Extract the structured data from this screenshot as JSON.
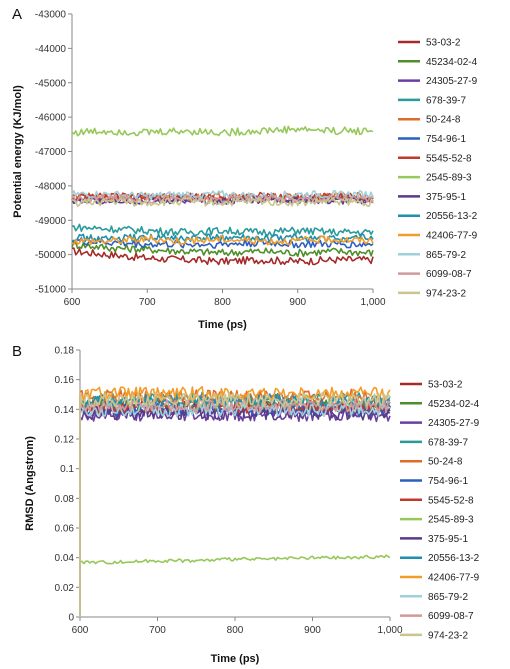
{
  "chart_data": [
    {
      "type": "line",
      "panel_label": "A",
      "xlabel": "Time (ps)",
      "ylabel": "Potential energy (KJ/mol)",
      "xlim": [
        600,
        1000
      ],
      "ylim": [
        -51000,
        -43000
      ],
      "x_ticks": [
        "600",
        "700",
        "800",
        "900",
        "1,000"
      ],
      "y_ticks": [
        "-43000",
        "-44000",
        "-45000",
        "-46000",
        "-47000",
        "-48000",
        "-49000",
        "-50000",
        "-51000"
      ],
      "grid": false,
      "legend_position": "right",
      "x": [
        600,
        650,
        700,
        750,
        800,
        850,
        900,
        950,
        1000
      ],
      "series": [
        {
          "name": "53-03-2",
          "color": "#a52a2a",
          "values": [
            -49900,
            -50000,
            -50100,
            -50150,
            -50200,
            -50150,
            -50200,
            -50150,
            -50150
          ]
        },
        {
          "name": "45234-02-4",
          "color": "#4e8f2a",
          "values": [
            -49700,
            -49800,
            -49850,
            -49900,
            -49950,
            -49900,
            -49950,
            -49900,
            -49950
          ]
        },
        {
          "name": "24305-27-9",
          "color": "#6a3fa0",
          "values": [
            -48400,
            -48400,
            -48350,
            -48400,
            -48400,
            -48350,
            -48400,
            -48350,
            -48400
          ]
        },
        {
          "name": "678-39-7",
          "color": "#2a9a9a",
          "values": [
            -49200,
            -49250,
            -49300,
            -49350,
            -49300,
            -49350,
            -49300,
            -49350,
            -49350
          ]
        },
        {
          "name": "50-24-8",
          "color": "#e06c2a",
          "values": [
            -48300,
            -48350,
            -48300,
            -48350,
            -48300,
            -48350,
            -48300,
            -48300,
            -48300
          ]
        },
        {
          "name": "754-96-1",
          "color": "#2c5fbf",
          "values": [
            -49600,
            -49650,
            -49700,
            -49700,
            -49700,
            -49650,
            -49700,
            -49700,
            -49700
          ]
        },
        {
          "name": "5545-52-8",
          "color": "#c0392b",
          "values": [
            -48350,
            -48300,
            -48350,
            -48300,
            -48350,
            -48300,
            -48350,
            -48300,
            -48350
          ]
        },
        {
          "name": "2545-89-3",
          "color": "#97c85a",
          "values": [
            -46450,
            -46400,
            -46450,
            -46400,
            -46450,
            -46400,
            -46350,
            -46400,
            -46400
          ]
        },
        {
          "name": "375-95-1",
          "color": "#5b3a8a",
          "values": [
            -48450,
            -48400,
            -48450,
            -48400,
            -48450,
            -48400,
            -48400,
            -48450,
            -48400
          ]
        },
        {
          "name": "20556-13-2",
          "color": "#1f8fb0",
          "values": [
            -49500,
            -49550,
            -49500,
            -49550,
            -49500,
            -49550,
            -49500,
            -49550,
            -49500
          ]
        },
        {
          "name": "42406-77-9",
          "color": "#f39c2a",
          "values": [
            -49600,
            -49600,
            -49550,
            -49600,
            -49550,
            -49600,
            -49600,
            -49550,
            -49600
          ]
        },
        {
          "name": "865-79-2",
          "color": "#9fd0dc",
          "values": [
            -48250,
            -48250,
            -48300,
            -48250,
            -48250,
            -48300,
            -48250,
            -48250,
            -48250
          ]
        },
        {
          "name": "6099-08-7",
          "color": "#d19a9a",
          "values": [
            -48400,
            -48350,
            -48400,
            -48350,
            -48400,
            -48350,
            -48400,
            -48350,
            -48400
          ]
        },
        {
          "name": "974-23-2",
          "color": "#c9c58e",
          "values": [
            -48500,
            -48450,
            -48500,
            -48450,
            -48500,
            -48450,
            -48500,
            -48450,
            -48500
          ]
        }
      ]
    },
    {
      "type": "line",
      "panel_label": "B",
      "xlabel": "Time (ps)",
      "ylabel": "RMSD (Angstrom)",
      "xlim": [
        600,
        1000
      ],
      "ylim": [
        0,
        0.18
      ],
      "x_ticks": [
        "600",
        "700",
        "800",
        "900",
        "1,000"
      ],
      "y_ticks": [
        "0.18",
        "0.16",
        "0.14",
        "0.12",
        "0.1",
        "0.08",
        "0.06",
        "0.04",
        "0.02",
        "0"
      ],
      "grid": false,
      "legend_position": "right",
      "x": [
        600,
        650,
        700,
        750,
        800,
        850,
        900,
        950,
        1000
      ],
      "series": [
        {
          "name": "53-03-2",
          "color": "#a52a2a",
          "values": [
            0.14,
            0.141,
            0.14,
            0.141,
            0.14,
            0.141,
            0.14,
            0.141,
            0.14
          ]
        },
        {
          "name": "45234-02-4",
          "color": "#4e8f2a",
          "values": [
            0.142,
            0.142,
            0.143,
            0.142,
            0.143,
            0.142,
            0.143,
            0.142,
            0.142
          ]
        },
        {
          "name": "24305-27-9",
          "color": "#6a3fa0",
          "values": [
            0.136,
            0.137,
            0.136,
            0.137,
            0.136,
            0.137,
            0.136,
            0.137,
            0.136
          ]
        },
        {
          "name": "678-39-7",
          "color": "#2a9a9a",
          "values": [
            0.146,
            0.147,
            0.146,
            0.147,
            0.146,
            0.147,
            0.146,
            0.147,
            0.146
          ]
        },
        {
          "name": "50-24-8",
          "color": "#e06c2a",
          "values": [
            0.148,
            0.149,
            0.148,
            0.149,
            0.148,
            0.149,
            0.148,
            0.149,
            0.148
          ]
        },
        {
          "name": "754-96-1",
          "color": "#2c5fbf",
          "values": [
            0.14,
            0.139,
            0.14,
            0.139,
            0.14,
            0.139,
            0.14,
            0.139,
            0.14
          ]
        },
        {
          "name": "5545-52-8",
          "color": "#c0392b",
          "values": [
            0.142,
            0.141,
            0.142,
            0.141,
            0.142,
            0.141,
            0.142,
            0.141,
            0.142
          ]
        },
        {
          "name": "2545-89-3",
          "color": "#97c85a",
          "values": [
            0.037,
            0.037,
            0.038,
            0.038,
            0.039,
            0.039,
            0.04,
            0.04,
            0.041
          ]
        },
        {
          "name": "375-95-1",
          "color": "#5b3a8a",
          "values": [
            0.138,
            0.137,
            0.138,
            0.137,
            0.138,
            0.137,
            0.138,
            0.137,
            0.138
          ]
        },
        {
          "name": "20556-13-2",
          "color": "#1f8fb0",
          "values": [
            0.145,
            0.146,
            0.145,
            0.146,
            0.145,
            0.146,
            0.145,
            0.146,
            0.145
          ]
        },
        {
          "name": "42406-77-9",
          "color": "#f39c2a",
          "values": [
            0.15,
            0.151,
            0.15,
            0.151,
            0.15,
            0.151,
            0.15,
            0.151,
            0.15
          ]
        },
        {
          "name": "865-79-2",
          "color": "#9fd0dc",
          "values": [
            0.139,
            0.14,
            0.139,
            0.14,
            0.139,
            0.14,
            0.139,
            0.14,
            0.139
          ]
        },
        {
          "name": "6099-08-7",
          "color": "#d19a9a",
          "values": [
            0.143,
            0.142,
            0.143,
            0.142,
            0.143,
            0.142,
            0.143,
            0.142,
            0.143
          ]
        },
        {
          "name": "974-23-2",
          "color": "#c9c58e",
          "values": [
            0.147,
            0.146,
            0.147,
            0.146,
            0.147,
            0.146,
            0.147,
            0.146,
            0.147
          ]
        }
      ]
    }
  ]
}
